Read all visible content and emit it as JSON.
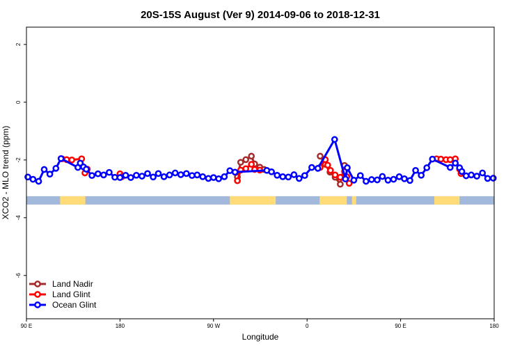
{
  "chart_data": {
    "type": "line",
    "title": "20S-15S August (Ver 9)   2014-09-06 to 2018-12-31",
    "xlabel": "Longitude",
    "ylabel": "XCO2 - MLO trend (ppm)",
    "xlim": [
      0,
      100
    ],
    "ylim": [
      -7.5,
      2.6
    ],
    "xticks": [
      {
        "pos": 0,
        "label": "90 E"
      },
      {
        "pos": 20,
        "label": "180"
      },
      {
        "pos": 40,
        "label": "90 W"
      },
      {
        "pos": 60,
        "label": "0"
      },
      {
        "pos": 80,
        "label": "90 E"
      },
      {
        "pos": 100,
        "label": "180"
      }
    ],
    "yticks": [
      2,
      0,
      -2,
      -4,
      -6
    ],
    "legend_position": "bottom-left",
    "colors": {
      "land_nadir": "#a52a2a",
      "land_glint": "#ff0000",
      "ocean_glint": "#0000ff",
      "ocean_band": "#a3b9dc",
      "land_band": "#ffdc78"
    },
    "surface_band": {
      "y": -3.4,
      "land_segments": [
        [
          7.2,
          12.6
        ],
        [
          43.5,
          53.3
        ],
        [
          62.7,
          68.5
        ],
        [
          69.6,
          70.5
        ],
        [
          87.2,
          92.6
        ]
      ]
    },
    "series": [
      {
        "name": "Land Nadir",
        "color": "#a52a2a",
        "segments": [
          [
            [
              45.1,
              -2.59
            ],
            [
              45.8,
              -2.08
            ],
            [
              46.9,
              -1.99
            ],
            [
              48.1,
              -1.87
            ],
            [
              48.8,
              -2.14
            ],
            [
              49.9,
              -2.25
            ],
            [
              50.8,
              -2.33
            ]
          ],
          [
            [
              62.8,
              -1.87
            ],
            [
              63.9,
              -2.15
            ],
            [
              64.9,
              -2.42
            ],
            [
              66.0,
              -2.6
            ],
            [
              67.1,
              -2.84
            ],
            [
              68.0,
              -2.19
            ]
          ]
        ]
      },
      {
        "name": "Land Glint",
        "color": "#ff0000",
        "segments": [
          [
            [
              7.6,
              -1.96
            ],
            [
              8.6,
              -1.99
            ],
            [
              9.7,
              -2.0
            ],
            [
              11.8,
              -1.96
            ],
            [
              12.5,
              -2.45
            ],
            [
              13.0,
              -2.32
            ]
          ],
          [
            [
              20.0,
              -2.48
            ],
            [
              20.4,
              -2.58
            ]
          ],
          [
            [
              45.1,
              -2.72
            ],
            [
              45.8,
              -2.35
            ],
            [
              46.9,
              -2.3
            ],
            [
              48.1,
              -2.15
            ],
            [
              48.8,
              -2.33
            ],
            [
              49.9,
              -2.35
            ]
          ],
          [
            [
              62.8,
              -2.26
            ],
            [
              63.9,
              -1.99
            ],
            [
              64.4,
              -2.18
            ],
            [
              65.0,
              -2.36
            ],
            [
              66.0,
              -2.52
            ],
            [
              67.1,
              -2.6
            ],
            [
              68.0,
              -2.4
            ],
            [
              68.5,
              -2.58
            ],
            [
              69.0,
              -2.81
            ]
          ],
          [
            [
              87.7,
              -1.96
            ],
            [
              88.6,
              -1.97
            ],
            [
              89.7,
              -1.99
            ],
            [
              90.6,
              -1.99
            ],
            [
              91.7,
              -1.96
            ],
            [
              92.6,
              -2.32
            ],
            [
              92.9,
              -2.47
            ]
          ]
        ]
      },
      {
        "name": "Ocean Glint",
        "color": "#0000ff",
        "segments": [
          [
            [
              0.3,
              -2.59
            ],
            [
              1.4,
              -2.67
            ],
            [
              2.6,
              -2.74
            ],
            [
              3.8,
              -2.33
            ],
            [
              5.0,
              -2.49
            ],
            [
              6.3,
              -2.29
            ],
            [
              7.4,
              -1.95
            ],
            [
              11.0,
              -2.26
            ],
            [
              11.5,
              -2.11
            ],
            [
              12.2,
              -2.24
            ],
            [
              12.8,
              -2.32
            ],
            [
              14.0,
              -2.54
            ],
            [
              15.3,
              -2.48
            ],
            [
              16.5,
              -2.52
            ],
            [
              17.7,
              -2.43
            ],
            [
              18.9,
              -2.6
            ],
            [
              20.0,
              -2.61
            ],
            [
              21.2,
              -2.53
            ],
            [
              22.3,
              -2.61
            ],
            [
              23.5,
              -2.53
            ],
            [
              24.7,
              -2.56
            ],
            [
              25.9,
              -2.47
            ],
            [
              27.1,
              -2.59
            ],
            [
              28.2,
              -2.47
            ],
            [
              29.4,
              -2.58
            ],
            [
              30.6,
              -2.52
            ],
            [
              31.8,
              -2.45
            ],
            [
              33.0,
              -2.51
            ],
            [
              34.2,
              -2.47
            ],
            [
              35.4,
              -2.54
            ],
            [
              36.5,
              -2.52
            ],
            [
              37.7,
              -2.58
            ],
            [
              38.9,
              -2.64
            ],
            [
              40.0,
              -2.61
            ],
            [
              41.1,
              -2.65
            ],
            [
              42.3,
              -2.58
            ],
            [
              43.5,
              -2.37
            ],
            [
              44.6,
              -2.42
            ],
            [
              51.4,
              -2.36
            ],
            [
              52.4,
              -2.41
            ],
            [
              53.6,
              -2.53
            ],
            [
              54.8,
              -2.58
            ],
            [
              56.0,
              -2.59
            ],
            [
              57.2,
              -2.51
            ],
            [
              58.3,
              -2.64
            ],
            [
              59.5,
              -2.54
            ],
            [
              61.0,
              -2.26
            ],
            [
              62.3,
              -2.29
            ],
            [
              65.9,
              -1.29
            ],
            [
              68.2,
              -2.66
            ],
            [
              68.6,
              -2.27
            ],
            [
              70.0,
              -2.7
            ],
            [
              71.4,
              -2.54
            ],
            [
              72.6,
              -2.74
            ],
            [
              73.8,
              -2.68
            ],
            [
              75.0,
              -2.69
            ],
            [
              76.1,
              -2.57
            ],
            [
              77.3,
              -2.7
            ],
            [
              78.5,
              -2.67
            ],
            [
              79.7,
              -2.58
            ],
            [
              80.8,
              -2.65
            ],
            [
              82.0,
              -2.71
            ],
            [
              83.2,
              -2.36
            ],
            [
              84.4,
              -2.53
            ],
            [
              85.6,
              -2.27
            ],
            [
              86.8,
              -1.97
            ],
            [
              90.6,
              -2.26
            ],
            [
              91.7,
              -2.11
            ],
            [
              92.6,
              -2.27
            ],
            [
              93.1,
              -2.4
            ],
            [
              94.0,
              -2.55
            ],
            [
              95.1,
              -2.52
            ],
            [
              96.3,
              -2.56
            ],
            [
              97.5,
              -2.45
            ],
            [
              98.6,
              -2.64
            ],
            [
              99.8,
              -2.63
            ]
          ]
        ]
      }
    ]
  }
}
